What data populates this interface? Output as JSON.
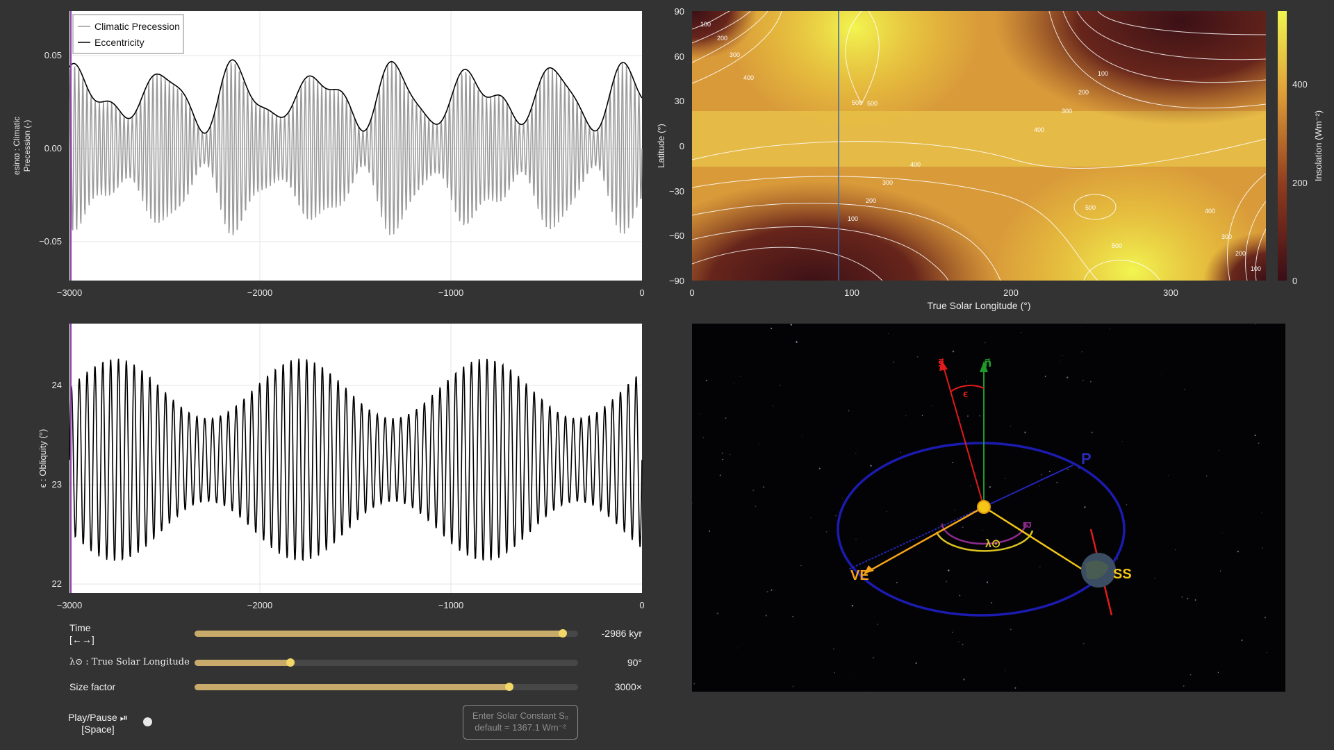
{
  "precession_plot": {
    "ylabel_line1": "esinϖ : Climatic",
    "ylabel_line2": "Precession (-)",
    "legend": [
      "Climatic Precession",
      "Eccentricity"
    ],
    "yticks": [
      "0.05",
      "0.00",
      "−0.05"
    ],
    "xticks": [
      "−3000",
      "−2000",
      "−1000",
      "0"
    ],
    "colors": {
      "precession": "#9a9a9a",
      "eccentricity": "#000000",
      "marker": "#8e44ad"
    }
  },
  "obliquity_plot": {
    "ylabel": "ϵ : Obliquity (°)",
    "yticks": [
      "24",
      "23",
      "22"
    ],
    "xticks": [
      "−3000",
      "−2000",
      "−1000",
      "0"
    ]
  },
  "insolation_map": {
    "ylabel": "Latitude (°)",
    "xlabel": "True Solar Longitude (°)",
    "yticks": [
      "90",
      "60",
      "30",
      "0",
      "−30",
      "−60",
      "−90"
    ],
    "xticks": [
      "0",
      "100",
      "200",
      "300"
    ],
    "colorbar_label": "Insolation (Wm⁻²)",
    "colorbar_ticks": [
      "400",
      "200",
      "0"
    ],
    "contour_labels": [
      "100",
      "200",
      "300",
      "400",
      "500",
      "500",
      "400",
      "300",
      "200",
      "100",
      "400",
      "300",
      "200",
      "100",
      "500",
      "500",
      "400",
      "300",
      "200",
      "100"
    ]
  },
  "orbit_view": {
    "labels": {
      "s": "s⃗",
      "n": "n⃗",
      "epsilon": "ϵ",
      "perihelion": "P",
      "ve": "VE",
      "ss": "SS",
      "varpi": "ϖ",
      "lambda": "λ⊙"
    },
    "colors": {
      "spin": "#e01b1b",
      "normal": "#1f9a2a",
      "orbit": "#1b1bb0",
      "sun_lines": "#f5c518",
      "ve": "#f5a31a"
    }
  },
  "controls": {
    "time": {
      "label": "Time",
      "hint": "[←→]",
      "value": "-2986 kyr",
      "fraction": 0.96
    },
    "longitude": {
      "label": "λ⊙ : True Solar Longitude",
      "value": "90°",
      "fraction": 0.25
    },
    "size": {
      "label": "Size factor",
      "value": "3000×",
      "fraction": 0.82
    },
    "play": {
      "label": "Play/Pause ⏯",
      "hint": "[Space]"
    },
    "solar_constant": {
      "placeholder_line1": "Enter Solar Constant S₀",
      "placeholder_line2": "default = 1367.1 Wm⁻²"
    }
  }
}
